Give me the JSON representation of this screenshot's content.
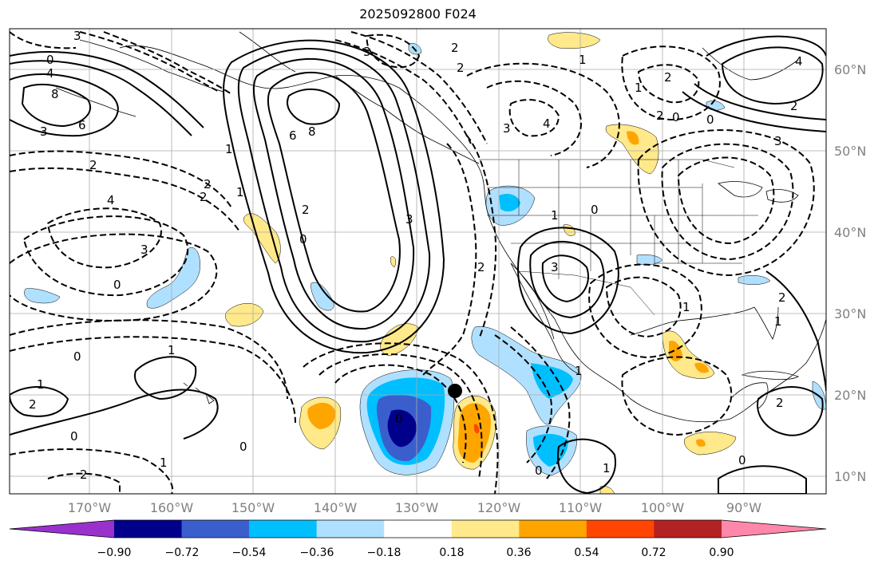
{
  "title": "2025092800 F024",
  "latitude_labels": [
    "60°N",
    "50°N",
    "40°N",
    "30°N",
    "20°N",
    "10°N"
  ],
  "longitude_labels": [
    "170°W",
    "160°W",
    "150°W",
    "140°W",
    "130°W",
    "120°W",
    "110°W",
    "100°W",
    "90°W"
  ],
  "colorbar": {
    "colors": [
      "#9932cc",
      "#00008b",
      "#3a5fcd",
      "#00bfff",
      "#b0e0ff",
      "#ffffff",
      "#ffe98a",
      "#ffa500",
      "#ff4500",
      "#b22222",
      "#ff88aa"
    ],
    "tick_labels": [
      "−0.90",
      "−0.72",
      "−0.54",
      "−0.36",
      "−0.18",
      "0.18",
      "0.36",
      "0.54",
      "0.72",
      "0.90"
    ]
  },
  "contour_labels": [
    "3",
    "0",
    "4",
    "8",
    "6",
    "3",
    "2",
    "1",
    "2",
    "1",
    "2",
    "4",
    "3",
    "0",
    "1",
    "0",
    "2",
    "1",
    "0",
    "6",
    "8",
    "2",
    "3",
    "0",
    "3",
    "2",
    "2",
    "1",
    "0",
    "3",
    "4",
    "2",
    "1",
    "0",
    "2",
    "2",
    "1",
    "2",
    "4",
    "3",
    "0",
    "3",
    "1",
    "2",
    "1",
    "0",
    "1",
    "2",
    "0",
    "2",
    "0",
    "1",
    "0",
    "1"
  ],
  "storm_marker_color": "#000000"
}
